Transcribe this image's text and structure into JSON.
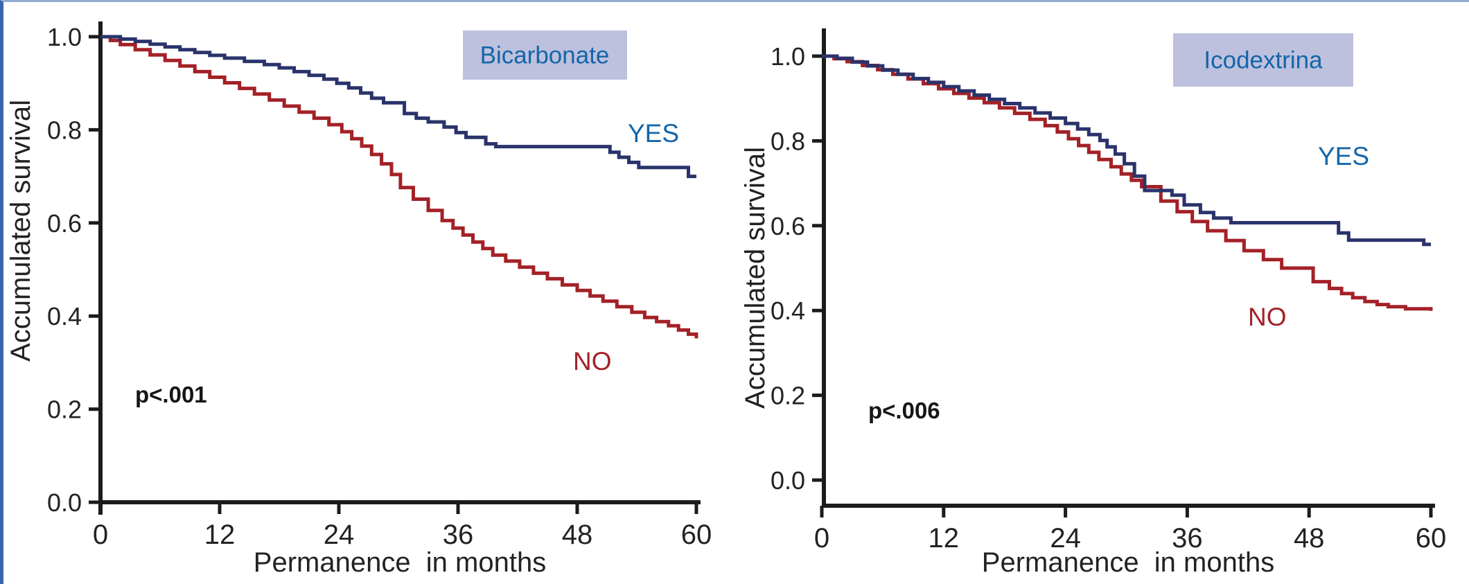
{
  "figure": {
    "name": "Peritoneal dialysis technique survival curves",
    "background": "#ffffff",
    "border_left_color": "#3a66ab",
    "border_top_color": "#93abd3",
    "axis_color": "#1c1c1c",
    "title_box_color": "#bdc1de",
    "title_text_color": "#1565a8",
    "yes_color": "#2a336b",
    "no_color": "#a32127"
  },
  "chart_data": [
    {
      "type": "line",
      "variant": "kaplan-meier-step",
      "title": "Bicarbonate",
      "p_value": "p<.001",
      "xlabel": "Permanence  in months",
      "ylabel": "Accumulated survival",
      "xlim": [
        0,
        60
      ],
      "ylim": [
        0.0,
        1.0
      ],
      "x_ticks": [
        0,
        12,
        24,
        36,
        48,
        60
      ],
      "y_ticks": [
        "0.0",
        "0.2",
        "0.4",
        "0.6",
        "0.8",
        "1.0"
      ],
      "grid": "off",
      "legend_position": "inline-annotations",
      "series": [
        {
          "name": "YES",
          "color": "#2a336b",
          "points": [
            [
              0,
              1.0
            ],
            [
              2,
              0.995
            ],
            [
              3.5,
              0.99
            ],
            [
              5,
              0.984
            ],
            [
              6.5,
              0.978
            ],
            [
              8,
              0.972
            ],
            [
              9.5,
              0.966
            ],
            [
              11,
              0.96
            ],
            [
              12.5,
              0.954
            ],
            [
              14.5,
              0.947
            ],
            [
              16.5,
              0.94
            ],
            [
              18,
              0.933
            ],
            [
              19.5,
              0.925
            ],
            [
              21,
              0.917
            ],
            [
              22.5,
              0.909
            ],
            [
              23.8,
              0.9
            ],
            [
              25,
              0.89
            ],
            [
              26.2,
              0.879
            ],
            [
              27.3,
              0.868
            ],
            [
              28.5,
              0.858
            ],
            [
              30.6,
              0.835
            ],
            [
              31.8,
              0.825
            ],
            [
              33,
              0.817
            ],
            [
              34.6,
              0.806
            ],
            [
              35.8,
              0.794
            ],
            [
              36.8,
              0.784
            ],
            [
              38.8,
              0.77
            ],
            [
              39.8,
              0.764
            ],
            [
              51.3,
              0.752
            ],
            [
              52.2,
              0.741
            ],
            [
              53.2,
              0.73
            ],
            [
              54.2,
              0.719
            ],
            [
              59.2,
              0.7
            ],
            [
              60,
              0.7
            ]
          ]
        },
        {
          "name": "NO",
          "color": "#a32127",
          "points": [
            [
              0,
              1.0
            ],
            [
              1,
              0.992
            ],
            [
              2,
              0.983
            ],
            [
              3.5,
              0.972
            ],
            [
              5,
              0.961
            ],
            [
              6.5,
              0.949
            ],
            [
              8,
              0.937
            ],
            [
              9.5,
              0.925
            ],
            [
              11,
              0.913
            ],
            [
              12.5,
              0.901
            ],
            [
              14,
              0.889
            ],
            [
              15.5,
              0.877
            ],
            [
              17,
              0.864
            ],
            [
              18.5,
              0.851
            ],
            [
              20,
              0.838
            ],
            [
              21.5,
              0.825
            ],
            [
              23,
              0.811
            ],
            [
              24.3,
              0.796
            ],
            [
              25.3,
              0.781
            ],
            [
              26.3,
              0.765
            ],
            [
              27.3,
              0.747
            ],
            [
              28.3,
              0.727
            ],
            [
              29.3,
              0.704
            ],
            [
              30.2,
              0.676
            ],
            [
              31.5,
              0.651
            ],
            [
              33,
              0.627
            ],
            [
              34.4,
              0.605
            ],
            [
              35.5,
              0.589
            ],
            [
              36.5,
              0.574
            ],
            [
              37.5,
              0.559
            ],
            [
              38.5,
              0.545
            ],
            [
              39.5,
              0.531
            ],
            [
              40.8,
              0.518
            ],
            [
              42.2,
              0.505
            ],
            [
              43.6,
              0.492
            ],
            [
              45,
              0.48
            ],
            [
              46.5,
              0.467
            ],
            [
              48,
              0.455
            ],
            [
              49.3,
              0.443
            ],
            [
              50.6,
              0.432
            ],
            [
              52,
              0.42
            ],
            [
              53.5,
              0.408
            ],
            [
              54.8,
              0.397
            ],
            [
              56,
              0.388
            ],
            [
              57.2,
              0.379
            ],
            [
              58.2,
              0.37
            ],
            [
              59.2,
              0.361
            ],
            [
              60,
              0.352
            ]
          ]
        }
      ]
    },
    {
      "type": "line",
      "variant": "kaplan-meier-step",
      "title": "Icodextrina",
      "p_value": "p<.006",
      "xlabel": "Permanence  in months",
      "ylabel": "Accumulated survival",
      "xlim": [
        0,
        60
      ],
      "ylim": [
        0.0,
        1.0
      ],
      "x_ticks": [
        0,
        12,
        24,
        36,
        48,
        60
      ],
      "y_ticks": [
        "0.0",
        "0.2",
        "0.4",
        "0.6",
        "0.8",
        "1.0"
      ],
      "grid": "off",
      "legend_position": "inline-annotations",
      "series": [
        {
          "name": "YES",
          "color": "#2a336b",
          "points": [
            [
              0,
              1.0
            ],
            [
              1.5,
              0.995
            ],
            [
              3,
              0.986
            ],
            [
              4.5,
              0.977
            ],
            [
              6,
              0.967
            ],
            [
              7.5,
              0.957
            ],
            [
              9,
              0.947
            ],
            [
              10.5,
              0.938
            ],
            [
              12,
              0.928
            ],
            [
              13.5,
              0.918
            ],
            [
              15,
              0.908
            ],
            [
              16.5,
              0.898
            ],
            [
              18,
              0.888
            ],
            [
              19.5,
              0.878
            ],
            [
              21,
              0.866
            ],
            [
              22.5,
              0.854
            ],
            [
              24,
              0.841
            ],
            [
              25.2,
              0.828
            ],
            [
              26.3,
              0.815
            ],
            [
              27.4,
              0.801
            ],
            [
              28.1,
              0.786
            ],
            [
              28.9,
              0.769
            ],
            [
              29.8,
              0.746
            ],
            [
              30.8,
              0.717
            ],
            [
              31.8,
              0.683
            ],
            [
              34.5,
              0.672
            ],
            [
              35.7,
              0.649
            ],
            [
              37.3,
              0.631
            ],
            [
              38.6,
              0.618
            ],
            [
              40.3,
              0.607
            ],
            [
              50.9,
              0.583
            ],
            [
              51.9,
              0.566
            ],
            [
              59.3,
              0.556
            ],
            [
              60,
              0.556
            ]
          ]
        },
        {
          "name": "NO",
          "color": "#a32127",
          "points": [
            [
              0,
              1.0
            ],
            [
              1.2,
              0.994
            ],
            [
              2.5,
              0.987
            ],
            [
              4,
              0.978
            ],
            [
              5.5,
              0.968
            ],
            [
              7,
              0.957
            ],
            [
              8.5,
              0.946
            ],
            [
              10,
              0.935
            ],
            [
              11.5,
              0.923
            ],
            [
              13,
              0.912
            ],
            [
              14.5,
              0.901
            ],
            [
              16,
              0.89
            ],
            [
              17.5,
              0.878
            ],
            [
              19,
              0.865
            ],
            [
              20.5,
              0.851
            ],
            [
              22,
              0.836
            ],
            [
              23.2,
              0.821
            ],
            [
              24.3,
              0.805
            ],
            [
              25.3,
              0.789
            ],
            [
              26.3,
              0.773
            ],
            [
              27.3,
              0.756
            ],
            [
              28.5,
              0.739
            ],
            [
              29.5,
              0.722
            ],
            [
              30.5,
              0.707
            ],
            [
              31.5,
              0.692
            ],
            [
              33.4,
              0.658
            ],
            [
              35,
              0.633
            ],
            [
              36.5,
              0.61
            ],
            [
              38,
              0.588
            ],
            [
              39.8,
              0.565
            ],
            [
              41.6,
              0.541
            ],
            [
              43.5,
              0.52
            ],
            [
              45.3,
              0.5
            ],
            [
              48.4,
              0.468
            ],
            [
              50,
              0.452
            ],
            [
              51.2,
              0.44
            ],
            [
              52.3,
              0.43
            ],
            [
              53.5,
              0.421
            ],
            [
              54.7,
              0.414
            ],
            [
              55.8,
              0.409
            ],
            [
              57.5,
              0.404
            ],
            [
              60,
              0.399
            ]
          ]
        }
      ]
    }
  ]
}
